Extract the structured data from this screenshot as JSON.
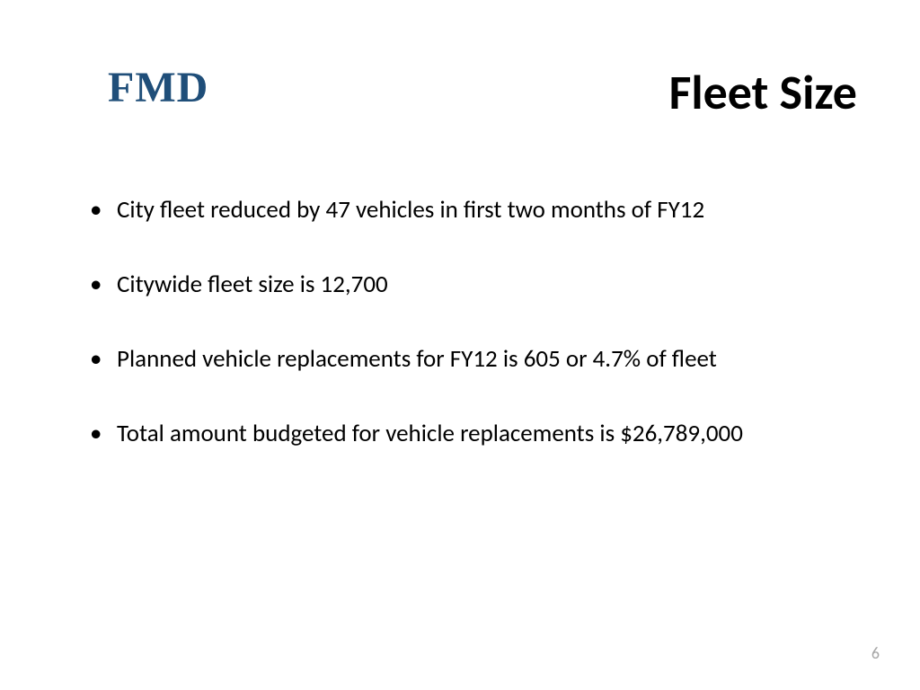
{
  "header": {
    "logo": "FMD",
    "title": "Fleet Size",
    "logo_color": "#1f4e79",
    "title_color": "#000000",
    "logo_fontsize": 48,
    "title_fontsize": 54
  },
  "bullets": [
    "City fleet reduced by 47 vehicles in first two months of FY12",
    "Citywide fleet size is 12,700",
    "Planned vehicle replacements for FY12 is 605 or 4.7% of fleet",
    "Total amount budgeted for vehicle replacements is $26,789,000"
  ],
  "bullet_style": {
    "fontsize": 27,
    "color": "#000000",
    "spacing": 48
  },
  "page_number": "6",
  "page_number_color": "#a6a6a6",
  "background_color": "#ffffff"
}
